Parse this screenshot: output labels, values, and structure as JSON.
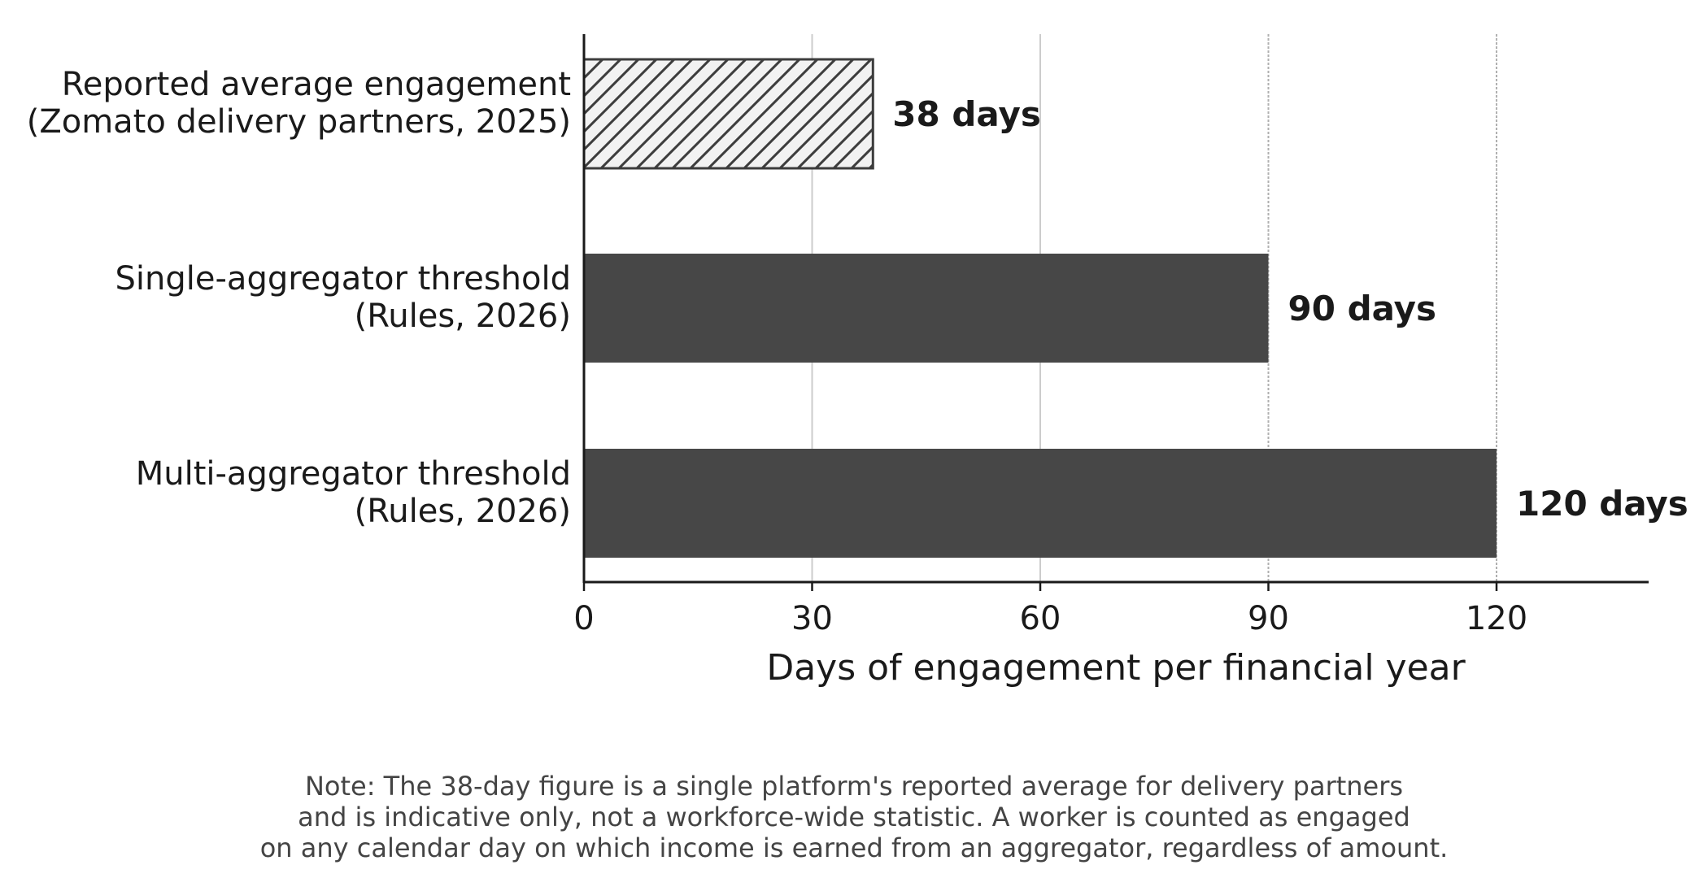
{
  "chart_data": {
    "type": "bar",
    "orientation": "horizontal",
    "categories": [
      "Reported average engagement\n(Zomato delivery partners, 2025)",
      "Single-aggregator threshold\n(Rules, 2026)",
      "Multi-aggregator threshold\n(Rules, 2026)"
    ],
    "values": [
      38,
      90,
      120
    ],
    "value_labels": [
      "38 days",
      "90 days",
      "120 days"
    ],
    "bar_styles": [
      "hatched",
      "solid",
      "solid"
    ],
    "xlabel": "Days of engagement per financial year",
    "ylabel": "",
    "xlim": [
      0,
      140
    ],
    "xticks": [
      0,
      30,
      60,
      90,
      120
    ],
    "xtick_labels": [
      "0",
      "30",
      "60",
      "90",
      "120"
    ],
    "grid": "vertical",
    "threshold_reference_lines": [
      90,
      120
    ],
    "colors": {
      "bar_solid": "#474747",
      "bar_hatch_fill": "#f2f2f2",
      "bar_hatch_stroke": "#3d3d3d",
      "grid": "#cccccc",
      "axis": "#1a1a1a",
      "text": "#1a1a1a",
      "note_text": "#444444"
    },
    "note": [
      "Note: The 38-day figure is a single platform's reported average for delivery partners",
      "and is indicative only, not a workforce-wide statistic. A worker is counted as engaged",
      "on any calendar day on which income is earned from an aggregator, regardless of amount."
    ]
  }
}
